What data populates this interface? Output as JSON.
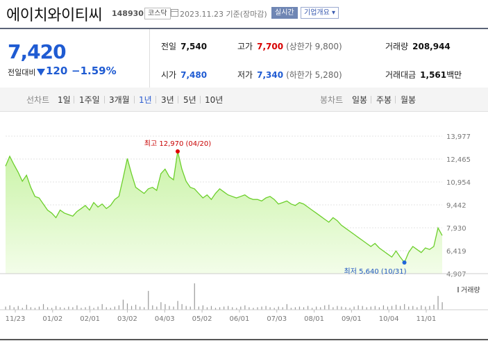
{
  "header": {
    "company": "에이치와이티씨",
    "code": "148930",
    "market_badge": "코스닥",
    "date_text": "2023.11.23  기준(장마감)",
    "realtime_label": "실시간",
    "corp_overview_label": "기업개요 ▾"
  },
  "summary": {
    "price": "7,420",
    "change_label": "전일대비",
    "change_value": "120",
    "change_rate": "−1.59%",
    "prev_close_label": "전일",
    "prev_close": "7,540",
    "high_label": "고가",
    "high": "7,700",
    "upper_limit": "(상한가 9,800)",
    "volume_label": "거래량",
    "volume": "208,944",
    "open_label": "시가",
    "open": "7,480",
    "low_label": "저가",
    "low": "7,340",
    "lower_limit": "(하한가 5,280)",
    "amount_label": "거래대금",
    "amount": "1,561",
    "amount_unit": "백만"
  },
  "tabs": {
    "line_label": "선차트",
    "periods": [
      "1일",
      "1주일",
      "3개월",
      "1년",
      "3년",
      "5년",
      "10년"
    ],
    "active_period": "1년",
    "candle_label": "봉차트",
    "candles": [
      "일봉",
      "주봉",
      "월봉"
    ]
  },
  "chart_data": {
    "type": "area",
    "ylim": [
      4907,
      13977
    ],
    "y_ticks": [
      "13,977",
      "12,465",
      "10,954",
      "9,442",
      "7,930",
      "6,419",
      "4,907"
    ],
    "x_tick_labels": [
      "11/23",
      "01/02",
      "02/01",
      "03/02",
      "04/03",
      "05/02",
      "06/01",
      "07/03",
      "08/01",
      "09/01",
      "10/04",
      "11/01"
    ],
    "prices": [
      12000,
      12650,
      12100,
      11600,
      11000,
      11400,
      10600,
      10000,
      9900,
      9500,
      9100,
      8900,
      8600,
      9100,
      8900,
      8800,
      8700,
      9000,
      9200,
      9400,
      9100,
      9600,
      9300,
      9500,
      9200,
      9400,
      9800,
      10000,
      11200,
      12500,
      11500,
      10600,
      10400,
      10200,
      10500,
      10600,
      10400,
      11500,
      11800,
      11300,
      11100,
      12970,
      11800,
      11000,
      10600,
      10500,
      10200,
      9900,
      10100,
      9800,
      10200,
      10500,
      10300,
      10100,
      10000,
      9900,
      10000,
      10100,
      9900,
      9800,
      9800,
      9700,
      9900,
      10000,
      9800,
      9500,
      9600,
      9700,
      9500,
      9400,
      9600,
      9500,
      9300,
      9100,
      8900,
      8700,
      8500,
      8300,
      8600,
      8400,
      8100,
      7900,
      7700,
      7500,
      7300,
      7100,
      6900,
      6700,
      6900,
      6600,
      6400,
      6200,
      6000,
      6400,
      6000,
      5640,
      6300,
      6700,
      6500,
      6300,
      6600,
      6500,
      6700,
      7920,
      7420
    ],
    "volumes": [
      5,
      7,
      4,
      6,
      3,
      8,
      4,
      3,
      5,
      9,
      4,
      3,
      6,
      4,
      3,
      5,
      4,
      7,
      3,
      4,
      6,
      3,
      5,
      9,
      4,
      3,
      5,
      7,
      16,
      10,
      6,
      8,
      5,
      4,
      30,
      7,
      5,
      12,
      9,
      6,
      5,
      14,
      9,
      6,
      5,
      42,
      5,
      7,
      4,
      6,
      3,
      4,
      5,
      6,
      4,
      3,
      5,
      7,
      4,
      3,
      4,
      5,
      6,
      4,
      3,
      5,
      4,
      9,
      3,
      4,
      5,
      4,
      6,
      3,
      5,
      4,
      7,
      8,
      4,
      6,
      5,
      4,
      3,
      5,
      7,
      6,
      4,
      5,
      6,
      4,
      7,
      5,
      6,
      8,
      6,
      9,
      5,
      6,
      4,
      7,
      5,
      6,
      8,
      22,
      12
    ],
    "high_annotation": "최고 12,970 (04/20)",
    "low_annotation": "최저 5,640 (10/31)",
    "volume_legend": "거래량",
    "high_index": 41,
    "low_index": 95
  },
  "colors": {
    "price_down": "#1f5bd2",
    "price_up": "#d70000",
    "line": "#6ccf2b",
    "high_marker": "#e00000",
    "low_marker": "#1f66d8"
  }
}
